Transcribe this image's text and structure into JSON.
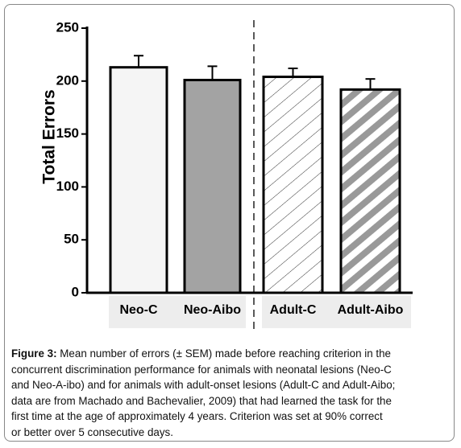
{
  "chart_data": {
    "type": "bar",
    "y_label": "Total Errors",
    "categories": [
      "Neo-C",
      "Neo-Aibo",
      "Adult-C",
      "Adult-Aibo"
    ],
    "values": [
      213,
      201,
      204,
      192
    ],
    "errors": [
      11,
      13,
      8,
      10
    ],
    "colors": [
      "#f5f5f5",
      "#a3a3a3",
      "#ffffff",
      "#999999"
    ],
    "fills": [
      "solid",
      "solid",
      "hatch-thin",
      "hatch-thick"
    ],
    "ylim": [
      0,
      250
    ],
    "yticks": [
      0,
      50,
      100,
      150,
      200,
      250
    ]
  },
  "caption": {
    "label": "Figure 3:",
    "lines": [
      " Mean number of errors (± SEM) made before reaching criterion in the",
      "concurrent discrimination performance for animals with neonatal lesions (Neo-C",
      "and Neo-A-ibo) and for animals with adult-onset lesions (Adult-C and Adult-Aibo;",
      "data are from Machado and Bachevalier, 2009) that had learned the task for the",
      "first time at the age of approximately 4 years.  Criterion was set at 90% correct",
      "or better over 5 consecutive days."
    ]
  }
}
